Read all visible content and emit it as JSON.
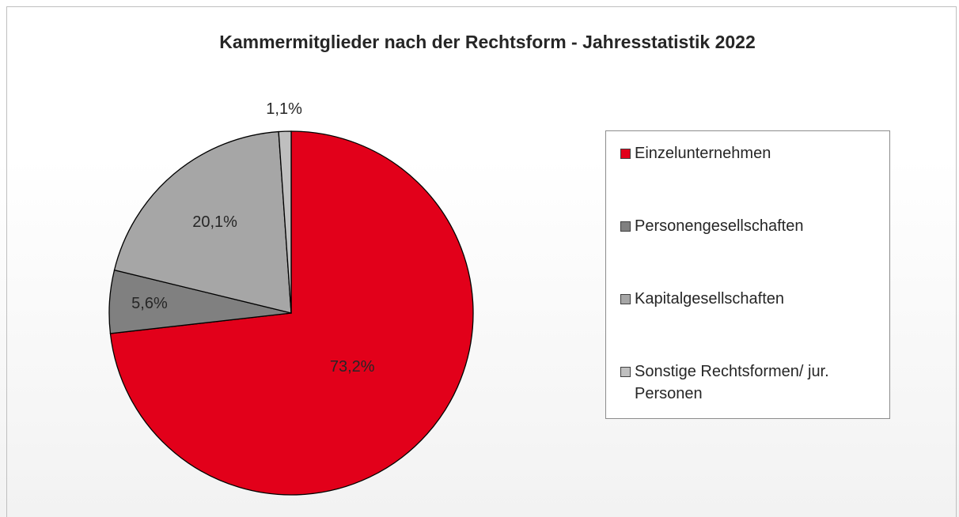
{
  "chart_data": {
    "type": "pie",
    "title": "Kammermitglieder nach der Rechtsform - Jahresstatistik 2022",
    "categories": [
      "Einzelunternehmen",
      "Personengesellschaften",
      "Kapitalgesellschaften",
      "Sonstige Rechtsformen/ jur. Personen"
    ],
    "values": [
      73.2,
      5.6,
      20.1,
      1.1
    ],
    "value_labels": [
      "73,2%",
      "5,6%",
      "20,1%",
      "1,1%"
    ],
    "colors": [
      "#e2001a",
      "#808080",
      "#a6a6a6",
      "#bfbfbf"
    ]
  }
}
